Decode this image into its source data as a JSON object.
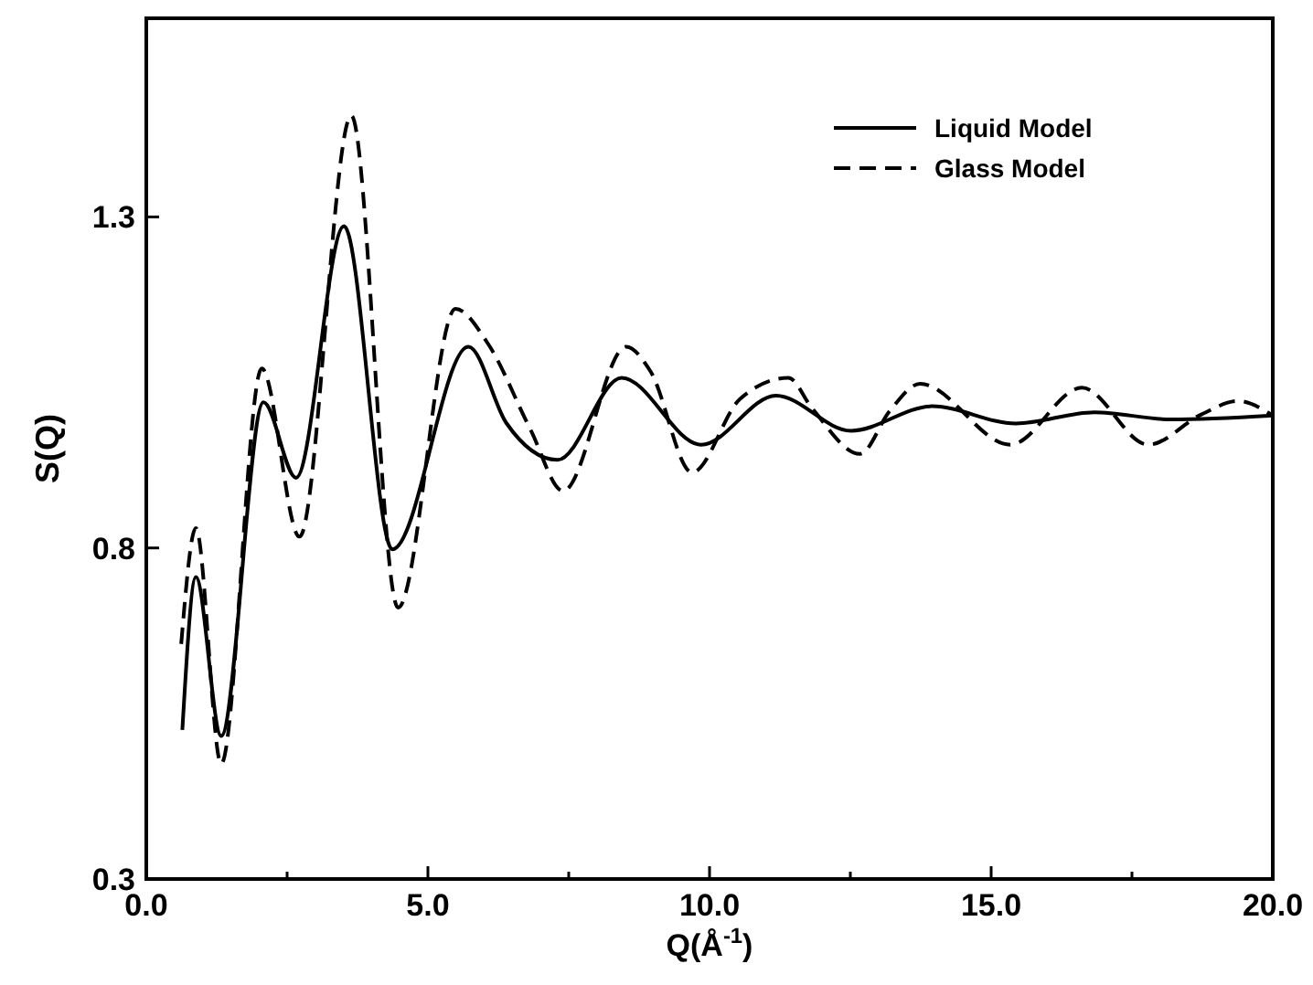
{
  "chart_data": {
    "type": "line",
    "xlabel": "Q(Å$^{-1}$)",
    "ylabel": "S(Q)",
    "xlim": [
      0,
      20
    ],
    "ylim": [
      0.3,
      1.6
    ],
    "xticks": [
      {
        "value": 0,
        "label": "0.0"
      },
      {
        "value": 2.5,
        "label": null
      },
      {
        "value": 5,
        "label": "5.0"
      },
      {
        "value": 7.5,
        "label": null
      },
      {
        "value": 10,
        "label": "10.0"
      },
      {
        "value": 12.5,
        "label": null
      },
      {
        "value": 15,
        "label": "15.0"
      },
      {
        "value": 17.5,
        "label": null
      },
      {
        "value": 20,
        "label": "20.0"
      }
    ],
    "yticks": [
      0.3,
      0.8,
      1.3
    ],
    "grid": false,
    "legend": "top right",
    "marker": "none",
    "series": [
      {
        "name": "Liquid Model",
        "color": "#000000",
        "line_style": "solid",
        "x": [
          0.64,
          0.88,
          1.33,
          2.08,
          2.66,
          3.51,
          4.37,
          5.72,
          6.39,
          7.3,
          8.44,
          9.85,
          11.18,
          12.51,
          13.95,
          15.44,
          16.83,
          18.2,
          20.0
        ],
        "values": [
          0.525,
          0.756,
          0.516,
          1.02,
          0.906,
          1.286,
          0.798,
          1.104,
          0.989,
          0.933,
          1.057,
          0.956,
          1.03,
          0.977,
          1.014,
          0.988,
          1.005,
          0.994,
          1.0
        ]
      },
      {
        "name": "Glass Model",
        "color": "#000000",
        "line_style": "dashed",
        "x": [
          0.62,
          0.88,
          1.33,
          2.05,
          2.72,
          3.64,
          4.47,
          5.49,
          6.07,
          6.82,
          7.4,
          8.52,
          8.95,
          9.69,
          10.54,
          11.4,
          11.82,
          12.67,
          13.2,
          13.74,
          15.34,
          16.61,
          17.79,
          18.74,
          19.38,
          20.0
        ],
        "values": [
          0.655,
          0.83,
          0.474,
          1.071,
          0.817,
          1.453,
          0.71,
          1.161,
          1.108,
          0.979,
          0.886,
          1.104,
          1.067,
          0.914,
          1.025,
          1.057,
          1.011,
          0.942,
          1.007,
          1.048,
          0.956,
          1.042,
          0.956,
          1.002,
          1.022,
          1.0
        ]
      }
    ]
  }
}
